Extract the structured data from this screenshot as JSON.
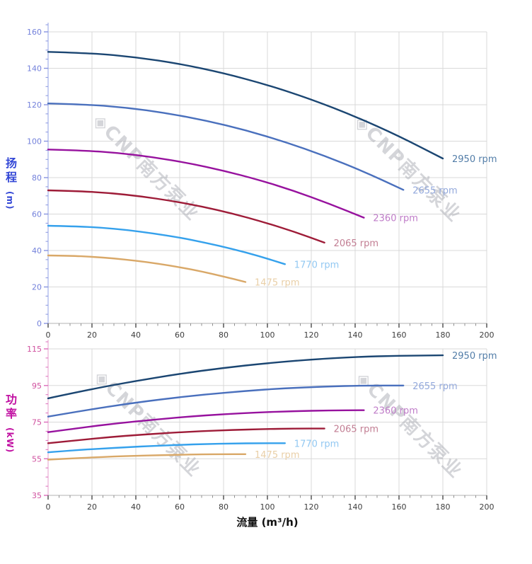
{
  "page": {
    "background": "#ffffff"
  },
  "watermark": {
    "logo": "◈",
    "text": "CNP南方泵业",
    "color": "rgba(170,172,180,0.50)"
  },
  "x_axis": {
    "title": "流量 (m³/h)",
    "title_color": "#111111",
    "min": 0,
    "max": 200,
    "major_step": 20,
    "minor_step": 5,
    "tick_labels": [
      "0",
      "20",
      "40",
      "60",
      "80",
      "100",
      "120",
      "140",
      "160",
      "180",
      "200"
    ],
    "tick_label_color": "#3d3d3d",
    "axis_line_color": "#b3b3b3",
    "major_tick_color": "#4a4a4a",
    "minor_tick_color": "#909090"
  },
  "grid_color": "#d9d9d9",
  "chart_data": [
    {
      "type": "line",
      "name": "head",
      "ylabel_cn": "扬程",
      "ylabel_unit": "(m)",
      "ylabel_color": "#3347d6",
      "xlabel": "流量 (m³/h)",
      "xlim": [
        0,
        200
      ],
      "ylim": [
        0,
        160
      ],
      "y_major_step": 20,
      "y_minor_step": 5,
      "y_tick_labels": [
        "0",
        "20",
        "40",
        "60",
        "80",
        "100",
        "120",
        "140",
        "160"
      ],
      "y_tick_label_color": "#7381db",
      "y_axis_line_color": "#a3b0e8",
      "y_tick_color": "#8894e0",
      "grid": true,
      "legend_position": "curve-end",
      "series": [
        {
          "label": "2950 rpm",
          "color": "#1b4672",
          "label_color": "#527da8",
          "x": [
            0,
            20,
            40,
            60,
            80,
            100,
            120,
            140,
            160,
            180
          ],
          "y": [
            149,
            148.3,
            146.1,
            142.5,
            137.4,
            130.9,
            123.0,
            113.6,
            102.8,
            90.5
          ]
        },
        {
          "label": "2655 rpm",
          "color": "#4a70bd",
          "label_color": "#93a9dc",
          "x": [
            0,
            18,
            36,
            54,
            72,
            90,
            108,
            126,
            144,
            162
          ],
          "y": [
            120.7,
            120.1,
            118.4,
            115.4,
            111.3,
            106.1,
            99.6,
            92.0,
            83.3,
            73.3
          ]
        },
        {
          "label": "2360 rpm",
          "color": "#97129e",
          "label_color": "#bf7cc8",
          "x": [
            0,
            16,
            32,
            48,
            64,
            80,
            96,
            112,
            128,
            144
          ],
          "y": [
            95.4,
            94.9,
            93.6,
            91.2,
            88.0,
            83.8,
            78.8,
            72.8,
            65.8,
            58.0
          ]
        },
        {
          "label": "2065 rpm",
          "color": "#9e1c38",
          "label_color": "#c27e93",
          "x": [
            0,
            14,
            28,
            42,
            56,
            70,
            84,
            98,
            112,
            126
          ],
          "y": [
            73.0,
            72.6,
            71.6,
            69.8,
            67.3,
            64.2,
            60.3,
            55.7,
            50.4,
            44.3
          ]
        },
        {
          "label": "1770 rpm",
          "color": "#35a1ec",
          "label_color": "#92c8f2",
          "x": [
            0,
            12,
            24,
            36,
            48,
            60,
            72,
            84,
            96,
            108
          ],
          "y": [
            53.6,
            53.3,
            52.6,
            51.3,
            49.4,
            47.1,
            44.2,
            40.9,
            37.0,
            32.5
          ]
        },
        {
          "label": "1475 rpm",
          "color": "#d9a868",
          "label_color": "#e9cfa7",
          "x": [
            0,
            10,
            20,
            30,
            40,
            50,
            60,
            70,
            80,
            90
          ],
          "y": [
            37.3,
            37.1,
            36.6,
            35.7,
            34.4,
            32.8,
            30.8,
            28.5,
            25.7,
            22.7
          ]
        }
      ]
    },
    {
      "type": "line",
      "name": "power",
      "ylabel_cn": "功率",
      "ylabel_unit": "(kW)",
      "ylabel_color": "#c110a2",
      "xlabel": "流量 (m³/h)",
      "xlim": [
        0,
        200
      ],
      "ylim": [
        35,
        115
      ],
      "y_major_step": 20,
      "y_minor_step": 5,
      "y_tick_labels": [
        "35",
        "55",
        "75",
        "95",
        "115"
      ],
      "y_tick_label_color": "#d0519f",
      "y_axis_line_color": "#e8aed6",
      "y_tick_color": "#dd6cbb",
      "grid": true,
      "legend_position": "curve-end",
      "series": [
        {
          "label": "2950 rpm",
          "color": "#1b4672",
          "label_color": "#527da8",
          "x": [
            0,
            20,
            40,
            60,
            80,
            100,
            120,
            140,
            160,
            180
          ],
          "y": [
            88,
            93.1,
            97.5,
            101.4,
            104.6,
            107.2,
            109.2,
            110.6,
            111.3,
            111.5
          ]
        },
        {
          "label": "2655 rpm",
          "color": "#4a70bd",
          "label_color": "#93a9dc",
          "x": [
            0,
            18,
            36,
            54,
            72,
            90,
            108,
            126,
            144,
            162
          ],
          "y": [
            78,
            81.7,
            85.0,
            87.8,
            90.2,
            92.0,
            93.5,
            94.4,
            95.0,
            95.0
          ]
        },
        {
          "label": "2360 rpm",
          "color": "#97129e",
          "label_color": "#bf7cc8",
          "x": [
            0,
            16,
            32,
            48,
            64,
            80,
            96,
            112,
            128,
            144
          ],
          "y": [
            69.5,
            72.1,
            74.4,
            76.3,
            78.0,
            79.3,
            80.3,
            81.0,
            81.4,
            81.5
          ]
        },
        {
          "label": "2065 rpm",
          "color": "#9e1c38",
          "label_color": "#c27e93",
          "x": [
            0,
            14,
            28,
            42,
            56,
            70,
            84,
            98,
            112,
            126
          ],
          "y": [
            63.5,
            65.2,
            66.8,
            68.1,
            69.2,
            70.1,
            70.7,
            71.2,
            71.5,
            71.5
          ]
        },
        {
          "label": "1770 rpm",
          "color": "#35a1ec",
          "label_color": "#92c8f2",
          "x": [
            0,
            12,
            24,
            36,
            48,
            60,
            72,
            84,
            96,
            108
          ],
          "y": [
            58.5,
            59.6,
            60.5,
            61.3,
            62.0,
            62.6,
            63.0,
            63.3,
            63.5,
            63.5
          ]
        },
        {
          "label": "1475 rpm",
          "color": "#d9a868",
          "label_color": "#e9cfa7",
          "x": [
            0,
            10,
            20,
            30,
            40,
            50,
            60,
            70,
            80,
            90
          ],
          "y": [
            54.5,
            55.1,
            55.7,
            56.2,
            56.6,
            56.9,
            57.2,
            57.4,
            57.5,
            57.5
          ]
        }
      ]
    }
  ]
}
